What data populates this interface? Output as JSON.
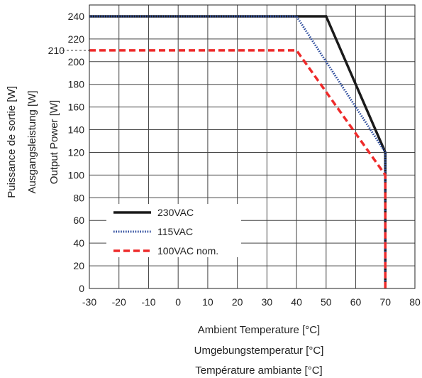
{
  "chart_data": {
    "type": "line",
    "xlabels": [
      "Ambient Temperature [°C]",
      "Umgebungstemperatur [°C]",
      "Température ambiante [°C]"
    ],
    "ylabels": [
      "Output Power [W]",
      "Ausgangsleistung [W]",
      "Puissance de sortie [W]"
    ],
    "xlim": [
      -30,
      80
    ],
    "ylim": [
      0,
      250
    ],
    "xticks": [
      -30,
      -20,
      -10,
      0,
      10,
      20,
      30,
      40,
      50,
      60,
      70,
      80
    ],
    "yticks": [
      0,
      20,
      40,
      60,
      80,
      100,
      120,
      140,
      160,
      180,
      200,
      220,
      240
    ],
    "annotation": {
      "y": 210,
      "label": "210"
    },
    "grid": true,
    "legend_position": "bottom-left",
    "series": [
      {
        "name": "230VAC",
        "color": "#1a1a1a",
        "style": "solid",
        "x": [
          -30,
          50,
          70,
          70
        ],
        "y": [
          240,
          240,
          120,
          0
        ]
      },
      {
        "name": "115VAC",
        "color": "#2b4a9c",
        "style": "dotted",
        "x": [
          -30,
          40,
          70,
          70
        ],
        "y": [
          240,
          240,
          120,
          0
        ]
      },
      {
        "name": "100VAC nom.",
        "color": "#ee2a2a",
        "style": "dashed",
        "x": [
          -30,
          40,
          70,
          70
        ],
        "y": [
          210,
          210,
          100,
          0
        ]
      }
    ]
  }
}
